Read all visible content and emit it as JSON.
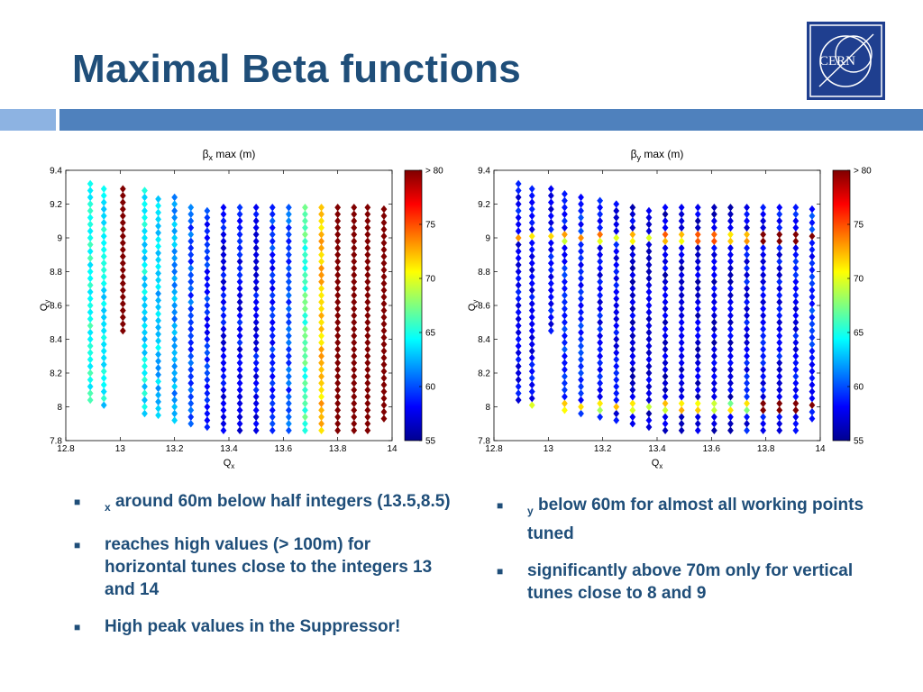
{
  "slide": {
    "title": "Maximal Beta functions",
    "logo_text": "CERN",
    "accent_light": "#8db3e2",
    "accent_dark": "#4f81bd",
    "title_color": "#1f4e79"
  },
  "bullets_left": [
    {
      "glyph": "",
      "sub": "x",
      "text": " around 60m below half integers (13.5,8.5)"
    },
    {
      "text": "reaches high values (> 100m) for horizontal tunes close to the integers 13 and 14"
    },
    {
      "text": "High peak values in the Suppressor!"
    }
  ],
  "bullets_right": [
    {
      "glyph": "",
      "sub": "y",
      "text": " below 60m for almost all working points tuned"
    },
    {
      "text": "significantly above 70m only for vertical tunes close to 8 and 9"
    }
  ],
  "chart_data": [
    {
      "type": "scatter",
      "title_symbol": "β",
      "title_sub": "x",
      "title_rest": " max (m)",
      "xlabel": "Q",
      "xlabel_sub": "x",
      "ylabel": "Q",
      "ylabel_sub": "y",
      "xlim": [
        12.8,
        14
      ],
      "ylim": [
        7.8,
        9.4
      ],
      "xticks": [
        "12.8",
        "13",
        "13.2",
        "13.4",
        "13.6",
        "13.8",
        "14"
      ],
      "yticks": [
        "7.8",
        "8",
        "8.2",
        "8.4",
        "8.6",
        "8.8",
        "9",
        "9.2",
        "9.4"
      ],
      "colorbar": {
        "min": 55,
        "max": 80,
        "ticks": [
          "55",
          "60",
          "65",
          "70",
          "75",
          "> 80"
        ]
      },
      "columns": [
        {
          "x": 12.89,
          "ymin": 8.04,
          "ymax": 9.33,
          "value": 65
        },
        {
          "x": 12.94,
          "ymin": 8.01,
          "ymax": 9.31,
          "value": 64
        },
        {
          "x": 13.01,
          "ymin": 8.45,
          "ymax": 9.29,
          "value": 80
        },
        {
          "x": 13.09,
          "ymin": 7.96,
          "ymax": 9.28,
          "value": 64
        },
        {
          "x": 13.14,
          "ymin": 7.95,
          "ymax": 9.26,
          "value": 63
        },
        {
          "x": 13.2,
          "ymin": 7.92,
          "ymax": 9.24,
          "value": 62
        },
        {
          "x": 13.26,
          "ymin": 7.9,
          "ymax": 9.21,
          "value": 60
        },
        {
          "x": 13.32,
          "ymin": 7.88,
          "ymax": 9.19,
          "value": 59
        },
        {
          "x": 13.38,
          "ymin": 7.86,
          "ymax": 9.18,
          "value": 58
        },
        {
          "x": 13.44,
          "ymin": 7.86,
          "ymax": 9.18,
          "value": 58
        },
        {
          "x": 13.5,
          "ymin": 7.86,
          "ymax": 9.18,
          "value": 58
        },
        {
          "x": 13.56,
          "ymin": 7.86,
          "ymax": 9.18,
          "value": 59
        },
        {
          "x": 13.62,
          "ymin": 7.86,
          "ymax": 9.18,
          "value": 60
        },
        {
          "x": 13.68,
          "ymin": 7.86,
          "ymax": 9.18,
          "value": 66
        },
        {
          "x": 13.74,
          "ymin": 7.86,
          "ymax": 9.18,
          "value": 72
        },
        {
          "x": 13.8,
          "ymin": 7.86,
          "ymax": 9.18,
          "value": 80
        },
        {
          "x": 13.86,
          "ymin": 7.86,
          "ymax": 9.18,
          "value": 80
        },
        {
          "x": 13.91,
          "ymin": 7.86,
          "ymax": 9.18,
          "value": 80
        },
        {
          "x": 13.97,
          "ymin": 7.93,
          "ymax": 9.18,
          "value": 80
        }
      ]
    },
    {
      "type": "scatter",
      "title_symbol": "β",
      "title_sub": "y",
      "title_rest": " max (m)",
      "xlabel": "Q",
      "xlabel_sub": "x",
      "ylabel": "Q",
      "ylabel_sub": "y",
      "xlim": [
        12.8,
        14
      ],
      "ylim": [
        7.8,
        9.4
      ],
      "xticks": [
        "12.8",
        "13",
        "13.2",
        "13.4",
        "13.6",
        "13.8",
        "14"
      ],
      "yticks": [
        "7.8",
        "8",
        "8.2",
        "8.4",
        "8.6",
        "8.8",
        "9",
        "9.2",
        "9.4"
      ],
      "colorbar": {
        "min": 55,
        "max": 80,
        "ticks": [
          "55",
          "60",
          "65",
          "70",
          "75",
          "> 80"
        ]
      },
      "columns": [
        {
          "x": 12.89,
          "ymin": 8.04,
          "ymax": 9.33,
          "value": 58
        },
        {
          "x": 12.94,
          "ymin": 8.01,
          "ymax": 9.31,
          "value": 58
        },
        {
          "x": 13.01,
          "ymin": 8.45,
          "ymax": 9.29,
          "value": 58
        },
        {
          "x": 13.06,
          "ymin": 7.98,
          "ymax": 9.28,
          "value": 59
        },
        {
          "x": 13.12,
          "ymin": 7.96,
          "ymax": 9.26,
          "value": 59
        },
        {
          "x": 13.19,
          "ymin": 7.94,
          "ymax": 9.24,
          "value": 58
        },
        {
          "x": 13.25,
          "ymin": 7.92,
          "ymax": 9.21,
          "value": 58
        },
        {
          "x": 13.31,
          "ymin": 7.9,
          "ymax": 9.19,
          "value": 57
        },
        {
          "x": 13.37,
          "ymin": 7.88,
          "ymax": 9.18,
          "value": 57
        },
        {
          "x": 13.43,
          "ymin": 7.86,
          "ymax": 9.18,
          "value": 57
        },
        {
          "x": 13.49,
          "ymin": 7.86,
          "ymax": 9.18,
          "value": 57
        },
        {
          "x": 13.55,
          "ymin": 7.86,
          "ymax": 9.18,
          "value": 57
        },
        {
          "x": 13.61,
          "ymin": 7.86,
          "ymax": 9.18,
          "value": 57
        },
        {
          "x": 13.67,
          "ymin": 7.86,
          "ymax": 9.18,
          "value": 57
        },
        {
          "x": 13.73,
          "ymin": 7.86,
          "ymax": 9.18,
          "value": 58
        },
        {
          "x": 13.79,
          "ymin": 7.86,
          "ymax": 9.18,
          "value": 58
        },
        {
          "x": 13.85,
          "ymin": 7.86,
          "ymax": 9.18,
          "value": 58
        },
        {
          "x": 13.91,
          "ymin": 7.86,
          "ymax": 9.18,
          "value": 58
        },
        {
          "x": 13.97,
          "ymin": 7.93,
          "ymax": 9.18,
          "value": 59
        }
      ],
      "highlight_bands": [
        {
          "y": 9.0,
          "value": 72
        },
        {
          "y": 8.0,
          "value": 70
        }
      ]
    }
  ]
}
